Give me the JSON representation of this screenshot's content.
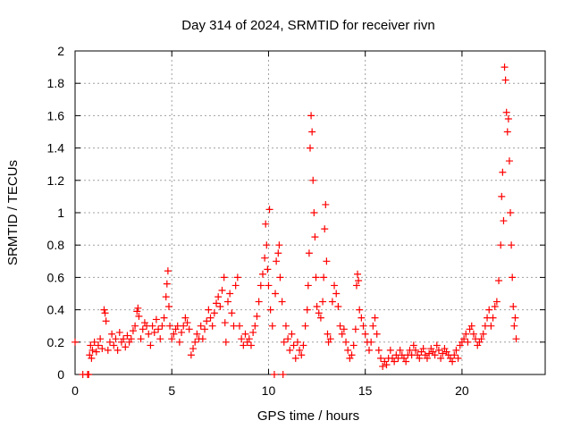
{
  "chart_data": {
    "type": "scatter",
    "title": "Day 314 of 2024, SRMTID for receiver rivn",
    "xlabel": "GPS time / hours",
    "ylabel": "SRMTID / TECUs",
    "xlim": [
      0,
      24.3
    ],
    "ylim": [
      0,
      2
    ],
    "x_ticks": [
      0,
      5,
      10,
      15,
      20
    ],
    "y_ticks": [
      0,
      0.2,
      0.4,
      0.6,
      0.8,
      1,
      1.2,
      1.4,
      1.6,
      1.8,
      2
    ],
    "x_tick_labels": [
      "0",
      "5",
      "10",
      "15",
      "20"
    ],
    "y_tick_labels": [
      "0",
      "0.2",
      "0.4",
      "0.6",
      "0.8",
      "1",
      "1.2",
      "1.4",
      "1.6",
      "1.8",
      "2"
    ],
    "grid": true,
    "marker": "+",
    "marker_color": "#ff0000",
    "series": [
      {
        "name": "rivn",
        "points": [
          [
            0.0,
            0.2
          ],
          [
            0.4,
            0.0
          ],
          [
            0.65,
            0.0
          ],
          [
            0.7,
            0.0
          ],
          [
            0.75,
            0.12
          ],
          [
            0.8,
            0.18
          ],
          [
            0.85,
            0.1
          ],
          [
            0.9,
            0.15
          ],
          [
            1.0,
            0.2
          ],
          [
            1.1,
            0.14
          ],
          [
            1.2,
            0.18
          ],
          [
            1.3,
            0.22
          ],
          [
            1.4,
            0.16
          ],
          [
            1.5,
            0.4
          ],
          [
            1.55,
            0.38
          ],
          [
            1.6,
            0.33
          ],
          [
            1.7,
            0.15
          ],
          [
            1.8,
            0.2
          ],
          [
            1.9,
            0.25
          ],
          [
            2.0,
            0.18
          ],
          [
            2.1,
            0.22
          ],
          [
            2.2,
            0.15
          ],
          [
            2.3,
            0.26
          ],
          [
            2.4,
            0.2
          ],
          [
            2.5,
            0.22
          ],
          [
            2.6,
            0.17
          ],
          [
            2.7,
            0.24
          ],
          [
            2.8,
            0.2
          ],
          [
            2.9,
            0.22
          ],
          [
            3.0,
            0.27
          ],
          [
            3.1,
            0.3
          ],
          [
            3.2,
            0.39
          ],
          [
            3.25,
            0.41
          ],
          [
            3.3,
            0.36
          ],
          [
            3.4,
            0.22
          ],
          [
            3.5,
            0.28
          ],
          [
            3.6,
            0.32
          ],
          [
            3.7,
            0.3
          ],
          [
            3.8,
            0.25
          ],
          [
            3.9,
            0.18
          ],
          [
            4.0,
            0.3
          ],
          [
            4.1,
            0.26
          ],
          [
            4.2,
            0.34
          ],
          [
            4.3,
            0.28
          ],
          [
            4.4,
            0.22
          ],
          [
            4.5,
            0.3
          ],
          [
            4.6,
            0.35
          ],
          [
            4.7,
            0.48
          ],
          [
            4.75,
            0.56
          ],
          [
            4.8,
            0.64
          ],
          [
            4.85,
            0.42
          ],
          [
            4.9,
            0.3
          ],
          [
            5.0,
            0.22
          ],
          [
            5.1,
            0.25
          ],
          [
            5.2,
            0.28
          ],
          [
            5.3,
            0.3
          ],
          [
            5.4,
            0.2
          ],
          [
            5.5,
            0.26
          ],
          [
            5.6,
            0.3
          ],
          [
            5.7,
            0.35
          ],
          [
            5.8,
            0.32
          ],
          [
            5.9,
            0.28
          ],
          [
            6.0,
            0.12
          ],
          [
            6.1,
            0.16
          ],
          [
            6.2,
            0.2
          ],
          [
            6.3,
            0.25
          ],
          [
            6.4,
            0.22
          ],
          [
            6.5,
            0.3
          ],
          [
            6.6,
            0.22
          ],
          [
            6.7,
            0.28
          ],
          [
            6.8,
            0.33
          ],
          [
            6.9,
            0.4
          ],
          [
            7.0,
            0.35
          ],
          [
            7.1,
            0.3
          ],
          [
            7.2,
            0.38
          ],
          [
            7.3,
            0.44
          ],
          [
            7.4,
            0.48
          ],
          [
            7.5,
            0.42
          ],
          [
            7.6,
            0.52
          ],
          [
            7.7,
            0.6
          ],
          [
            7.75,
            0.32
          ],
          [
            7.8,
            0.2
          ],
          [
            7.9,
            0.45
          ],
          [
            8.0,
            0.5
          ],
          [
            8.1,
            0.38
          ],
          [
            8.2,
            0.3
          ],
          [
            8.3,
            0.55
          ],
          [
            8.4,
            0.6
          ],
          [
            8.5,
            0.3
          ],
          [
            8.6,
            0.22
          ],
          [
            8.7,
            0.18
          ],
          [
            8.8,
            0.25
          ],
          [
            8.9,
            0.2
          ],
          [
            9.0,
            0.22
          ],
          [
            9.1,
            0.18
          ],
          [
            9.2,
            0.26
          ],
          [
            9.3,
            0.3
          ],
          [
            9.4,
            0.36
          ],
          [
            9.5,
            0.45
          ],
          [
            9.6,
            0.55
          ],
          [
            9.7,
            0.62
          ],
          [
            9.8,
            0.72
          ],
          [
            9.85,
            0.93
          ],
          [
            9.9,
            0.8
          ],
          [
            9.95,
            0.65
          ],
          [
            10.0,
            0.55
          ],
          [
            10.05,
            1.02
          ],
          [
            10.1,
            0.4
          ],
          [
            10.2,
            0.3
          ],
          [
            10.3,
            0.0
          ],
          [
            10.35,
            0.5
          ],
          [
            10.4,
            0.7
          ],
          [
            10.5,
            0.75
          ],
          [
            10.55,
            0.8
          ],
          [
            10.6,
            0.6
          ],
          [
            10.7,
            0.45
          ],
          [
            10.75,
            0.0
          ],
          [
            10.8,
            0.2
          ],
          [
            10.9,
            0.3
          ],
          [
            11.0,
            0.22
          ],
          [
            11.1,
            0.15
          ],
          [
            11.2,
            0.25
          ],
          [
            11.3,
            0.18
          ],
          [
            11.4,
            0.1
          ],
          [
            11.5,
            0.2
          ],
          [
            11.6,
            0.15
          ],
          [
            11.7,
            0.12
          ],
          [
            11.8,
            0.18
          ],
          [
            11.9,
            0.3
          ],
          [
            12.0,
            0.4
          ],
          [
            12.05,
            0.55
          ],
          [
            12.1,
            0.75
          ],
          [
            12.15,
            1.4
          ],
          [
            12.2,
            1.6
          ],
          [
            12.25,
            1.5
          ],
          [
            12.3,
            1.2
          ],
          [
            12.35,
            1.0
          ],
          [
            12.4,
            0.85
          ],
          [
            12.45,
            0.6
          ],
          [
            12.5,
            0.42
          ],
          [
            12.6,
            0.38
          ],
          [
            12.7,
            0.35
          ],
          [
            12.8,
            0.45
          ],
          [
            12.85,
            0.6
          ],
          [
            12.9,
            0.9
          ],
          [
            12.95,
            1.05
          ],
          [
            13.0,
            0.7
          ],
          [
            13.05,
            0.25
          ],
          [
            13.1,
            0.2
          ],
          [
            13.2,
            0.22
          ],
          [
            13.3,
            0.45
          ],
          [
            13.4,
            0.55
          ],
          [
            13.5,
            0.5
          ],
          [
            13.6,
            0.42
          ],
          [
            13.7,
            0.3
          ],
          [
            13.8,
            0.25
          ],
          [
            13.9,
            0.28
          ],
          [
            14.0,
            0.2
          ],
          [
            14.1,
            0.15
          ],
          [
            14.2,
            0.1
          ],
          [
            14.3,
            0.12
          ],
          [
            14.4,
            0.18
          ],
          [
            14.5,
            0.28
          ],
          [
            14.55,
            0.55
          ],
          [
            14.6,
            0.62
          ],
          [
            14.65,
            0.58
          ],
          [
            14.7,
            0.4
          ],
          [
            14.8,
            0.35
          ],
          [
            14.9,
            0.3
          ],
          [
            15.0,
            0.25
          ],
          [
            15.1,
            0.2
          ],
          [
            15.2,
            0.15
          ],
          [
            15.3,
            0.2
          ],
          [
            15.4,
            0.3
          ],
          [
            15.5,
            0.35
          ],
          [
            15.6,
            0.25
          ],
          [
            15.7,
            0.15
          ],
          [
            15.8,
            0.1
          ],
          [
            15.9,
            0.05
          ],
          [
            16.0,
            0.08
          ],
          [
            16.1,
            0.06
          ],
          [
            16.2,
            0.1
          ],
          [
            16.3,
            0.15
          ],
          [
            16.4,
            0.1
          ],
          [
            16.5,
            0.08
          ],
          [
            16.6,
            0.12
          ],
          [
            16.7,
            0.1
          ],
          [
            16.8,
            0.15
          ],
          [
            16.9,
            0.12
          ],
          [
            17.0,
            0.1
          ],
          [
            17.1,
            0.08
          ],
          [
            17.2,
            0.12
          ],
          [
            17.3,
            0.15
          ],
          [
            17.4,
            0.12
          ],
          [
            17.5,
            0.18
          ],
          [
            17.6,
            0.15
          ],
          [
            17.7,
            0.12
          ],
          [
            17.8,
            0.1
          ],
          [
            17.9,
            0.14
          ],
          [
            18.0,
            0.16
          ],
          [
            18.1,
            0.12
          ],
          [
            18.2,
            0.1
          ],
          [
            18.3,
            0.13
          ],
          [
            18.4,
            0.16
          ],
          [
            18.5,
            0.14
          ],
          [
            18.6,
            0.12
          ],
          [
            18.7,
            0.18
          ],
          [
            18.8,
            0.15
          ],
          [
            18.9,
            0.1
          ],
          [
            19.0,
            0.13
          ],
          [
            19.1,
            0.16
          ],
          [
            19.2,
            0.14
          ],
          [
            19.3,
            0.12
          ],
          [
            19.4,
            0.1
          ],
          [
            19.5,
            0.08
          ],
          [
            19.6,
            0.12
          ],
          [
            19.7,
            0.15
          ],
          [
            19.8,
            0.1
          ],
          [
            19.9,
            0.18
          ],
          [
            20.0,
            0.2
          ],
          [
            20.1,
            0.22
          ],
          [
            20.2,
            0.25
          ],
          [
            20.3,
            0.2
          ],
          [
            20.4,
            0.28
          ],
          [
            20.5,
            0.3
          ],
          [
            20.6,
            0.25
          ],
          [
            20.7,
            0.22
          ],
          [
            20.8,
            0.18
          ],
          [
            20.9,
            0.2
          ],
          [
            21.0,
            0.22
          ],
          [
            21.1,
            0.25
          ],
          [
            21.2,
            0.3
          ],
          [
            21.3,
            0.35
          ],
          [
            21.4,
            0.4
          ],
          [
            21.5,
            0.3
          ],
          [
            21.6,
            0.35
          ],
          [
            21.7,
            0.42
          ],
          [
            21.8,
            0.45
          ],
          [
            21.9,
            0.58
          ],
          [
            22.0,
            0.8
          ],
          [
            22.05,
            1.1
          ],
          [
            22.1,
            1.25
          ],
          [
            22.15,
            0.95
          ],
          [
            22.2,
            1.9
          ],
          [
            22.25,
            1.82
          ],
          [
            22.3,
            1.62
          ],
          [
            22.35,
            1.5
          ],
          [
            22.4,
            1.58
          ],
          [
            22.45,
            1.32
          ],
          [
            22.5,
            1.0
          ],
          [
            22.55,
            0.8
          ],
          [
            22.6,
            0.6
          ],
          [
            22.65,
            0.42
          ],
          [
            22.7,
            0.3
          ],
          [
            22.75,
            0.35
          ],
          [
            22.8,
            0.22
          ]
        ]
      }
    ]
  }
}
